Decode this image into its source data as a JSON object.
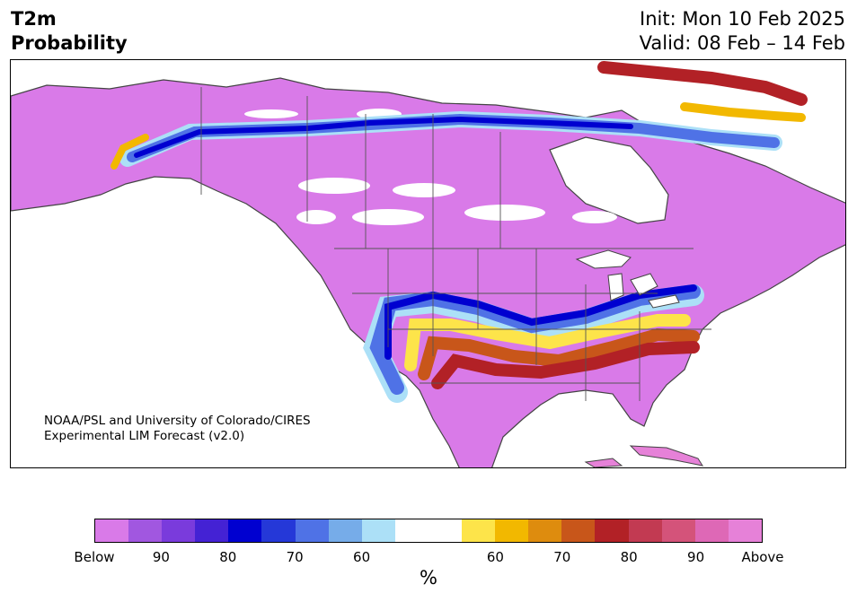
{
  "header": {
    "variable": "T2m",
    "product": "Probability",
    "init": "Init: Mon 10 Feb 2025",
    "valid": "Valid: 08 Feb – 14 Feb"
  },
  "credit": {
    "line1": "NOAA/PSL and University of Colorado/CIRES",
    "line2": "Experimental LIM Forecast (v2.0)"
  },
  "colorbar": {
    "unit": "%",
    "colors": [
      "#d97ae8",
      "#a157e0",
      "#7a3bdc",
      "#4422d4",
      "#0000d0",
      "#2538d8",
      "#4f72e6",
      "#76ace9",
      "#ace0f7",
      "#ffffff",
      "#ffffff",
      "#fde44a",
      "#f2b800",
      "#de8c0e",
      "#c8561a",
      "#b22126",
      "#c23a52",
      "#d4537a",
      "#de68b6",
      "#e681d8"
    ],
    "ticks": [
      {
        "label": "Below",
        "index": 0
      },
      {
        "label": "90",
        "index": 2
      },
      {
        "label": "80",
        "index": 4
      },
      {
        "label": "70",
        "index": 6
      },
      {
        "label": "60",
        "index": 8
      },
      {
        "label": "60",
        "index": 12
      },
      {
        "label": "70",
        "index": 14
      },
      {
        "label": "80",
        "index": 16
      },
      {
        "label": "90",
        "index": 18
      },
      {
        "label": "Above",
        "index": 20
      }
    ]
  }
}
